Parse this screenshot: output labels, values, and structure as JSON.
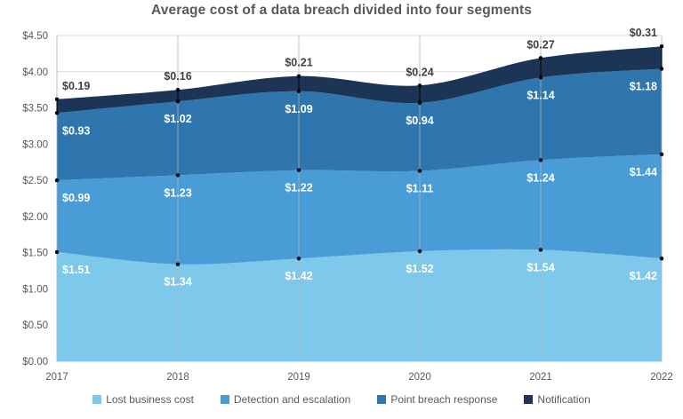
{
  "title": "Average cost of a data breach divided into four segments",
  "chart_data": {
    "type": "area",
    "stacked": true,
    "title": "Average cost of a data breach divided into four segments",
    "x": [
      2017,
      2018,
      2019,
      2020,
      2021,
      2022
    ],
    "series": [
      {
        "name": "Lost business cost",
        "color": "#7DC8EB",
        "values": [
          1.51,
          1.34,
          1.42,
          1.52,
          1.54,
          1.42
        ],
        "labels": [
          "$1.51",
          "$1.34",
          "$1.42",
          "$1.52",
          "$1.54",
          "$1.42"
        ],
        "label_color": "#FFFFFF",
        "label_position": "inside"
      },
      {
        "name": "Detection and escalation",
        "color": "#4A9CD6",
        "values": [
          0.99,
          1.23,
          1.22,
          1.11,
          1.24,
          1.44
        ],
        "labels": [
          "$0.99",
          "$1.23",
          "$1.22",
          "$1.11",
          "$1.24",
          "$1.44"
        ],
        "label_color": "#FFFFFF",
        "label_position": "inside"
      },
      {
        "name": "Point breach response",
        "color": "#2E76AD",
        "values": [
          0.93,
          1.02,
          1.09,
          0.94,
          1.14,
          1.18
        ],
        "labels": [
          "$0.93",
          "$1.02",
          "$1.09",
          "$0.94",
          "$1.14",
          "$1.18"
        ],
        "label_color": "#FFFFFF",
        "label_position": "inside"
      },
      {
        "name": "Notification",
        "color": "#1C3557",
        "values": [
          0.19,
          0.16,
          0.21,
          0.24,
          0.27,
          0.31
        ],
        "labels": [
          "$0.19",
          "$0.16",
          "$0.21",
          "$0.24",
          "$0.27",
          "$0.31"
        ],
        "label_color": "#404040",
        "label_position": "above"
      }
    ],
    "xlabel": "",
    "ylabel": "",
    "ylim": [
      0,
      4.5
    ],
    "ytick_step": 0.5,
    "grid": true,
    "markers": "black-dots",
    "legend_position": "bottom"
  },
  "y_axis": {
    "tick_labels": [
      "$4.50",
      "$4.00",
      "$3.50",
      "$3.00",
      "$2.50",
      "$2.00",
      "$1.50",
      "$1.00",
      "$0.50",
      "$0.00"
    ]
  },
  "x_axis": {
    "tick_labels": [
      "2017",
      "2018",
      "2019",
      "2020",
      "2021",
      "2022"
    ]
  },
  "colors": {
    "background": "#FFFFFF",
    "gridline": "#D9D9D9",
    "axis_line": "#C0C0C0",
    "year_line": "#B3B3B3",
    "marker": "#000000",
    "title_text": "#595959",
    "tick_text": "#595959",
    "legend_text": "#595959",
    "label_dark": "#404040",
    "label_light": "#FFFFFF"
  }
}
